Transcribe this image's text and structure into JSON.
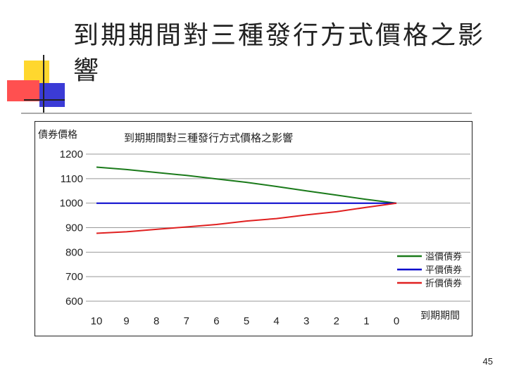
{
  "slide": {
    "title": "到期期間對三種發行方式價格之影響",
    "page_number": "45"
  },
  "colors": {
    "series_premium": "#1a7a1a",
    "series_par": "#0000cc",
    "series_discount": "#e02020",
    "grid": "#999999"
  },
  "chart_data": {
    "type": "line",
    "title": "到期期間對三種發行方式價格之影響",
    "ylabel": "債券價格",
    "xlabel": "到期期間",
    "categories": [
      "10",
      "9",
      "8",
      "7",
      "6",
      "5",
      "4",
      "3",
      "2",
      "1",
      "0"
    ],
    "yticks": [
      "1200",
      "1100",
      "1000",
      "900",
      "800",
      "700",
      "600"
    ],
    "ylim": [
      600,
      1200
    ],
    "grid": true,
    "legend_position": "right",
    "series": [
      {
        "name": "溢價債券",
        "values": [
          1147,
          1137,
          1125,
          1113,
          1099,
          1085,
          1068,
          1050,
          1033,
          1015,
          1000
        ]
      },
      {
        "name": "平價債券",
        "values": [
          1000,
          1000,
          1000,
          1000,
          1000,
          1000,
          1000,
          1000,
          1000,
          1000,
          1000
        ]
      },
      {
        "name": "折價債券",
        "values": [
          877,
          883,
          893,
          903,
          913,
          927,
          937,
          952,
          965,
          983,
          1000
        ]
      }
    ]
  }
}
